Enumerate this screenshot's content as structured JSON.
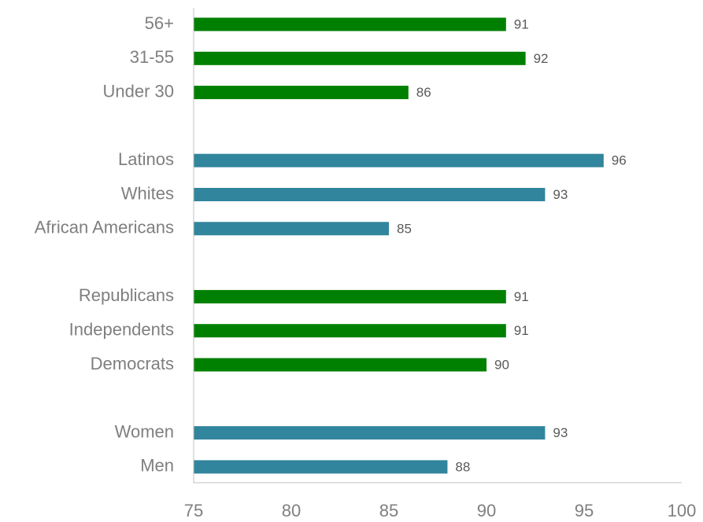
{
  "chart_data": {
    "type": "bar",
    "orientation": "horizontal",
    "title": "",
    "xlabel": "",
    "ylabel": "",
    "xlim": [
      75,
      100
    ],
    "xticks": [
      75,
      80,
      85,
      90,
      95,
      100
    ],
    "grid": false,
    "legend": "none",
    "colors": {
      "green": "#008000",
      "teal": "#31859c"
    },
    "groups": [
      {
        "color": "green",
        "bars": [
          {
            "label": "56+",
            "value": 91
          },
          {
            "label": "31-55",
            "value": 92
          },
          {
            "label": "Under 30",
            "value": 86
          }
        ]
      },
      {
        "color": "teal",
        "bars": [
          {
            "label": "Latinos",
            "value": 96
          },
          {
            "label": "Whites",
            "value": 93
          },
          {
            "label": "African Americans",
            "value": 85
          }
        ]
      },
      {
        "color": "green",
        "bars": [
          {
            "label": "Republicans",
            "value": 91
          },
          {
            "label": "Independents",
            "value": 91
          },
          {
            "label": "Democrats",
            "value": 90
          }
        ]
      },
      {
        "color": "teal",
        "bars": [
          {
            "label": "Women",
            "value": 93
          },
          {
            "label": "Men",
            "value": 88
          }
        ]
      }
    ]
  }
}
